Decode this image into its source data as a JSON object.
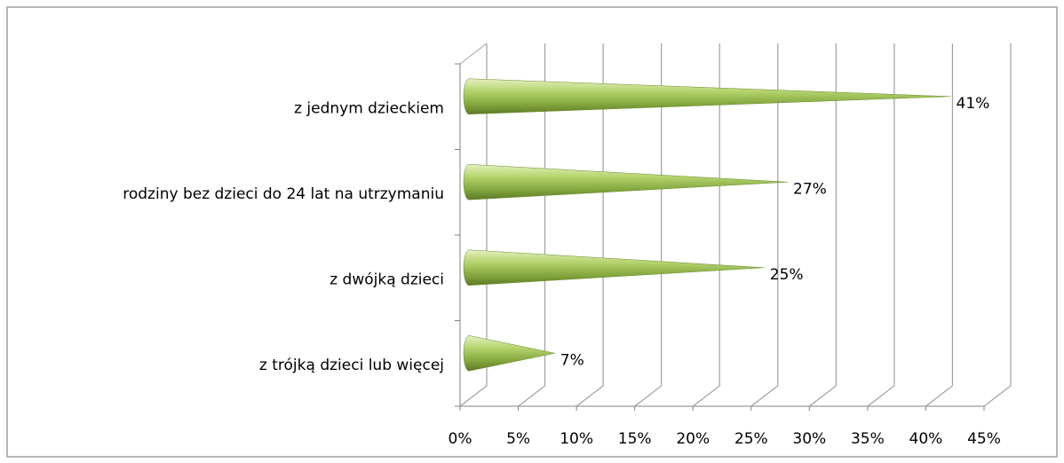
{
  "chart_data": {
    "type": "cone-bar",
    "categories": [
      "z jednym dzieckiem",
      "rodziny bez dzieci do 24 lat na utrzymaniu",
      "z dwójką dzieci",
      "z trójką dzieci lub więcej"
    ],
    "values": [
      41,
      27,
      25,
      7
    ],
    "value_labels": [
      "41%",
      "27%",
      "25%",
      "7%"
    ],
    "color": "#9bbb59",
    "xlim": [
      0,
      45
    ],
    "xticks": [
      {
        "value": 0,
        "label": "0%"
      },
      {
        "value": 5,
        "label": "5%"
      },
      {
        "value": 10,
        "label": "10%"
      },
      {
        "value": 15,
        "label": "15%"
      },
      {
        "value": 20,
        "label": "20%"
      },
      {
        "value": 25,
        "label": "25%"
      },
      {
        "value": 30,
        "label": "30%"
      },
      {
        "value": 35,
        "label": "35%"
      },
      {
        "value": 40,
        "label": "40%"
      },
      {
        "value": 45,
        "label": "45%"
      }
    ],
    "grid": true
  }
}
